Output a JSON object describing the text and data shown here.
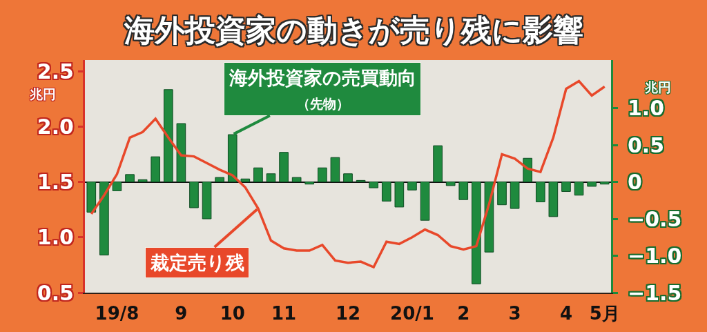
{
  "chart_data": {
    "type": "bar",
    "title": "海外投資家の動きが売り残に影響",
    "ylabel": "兆円",
    "y2label": "兆円",
    "categories": [
      null,
      null,
      "19/8",
      null,
      null,
      null,
      null,
      "9",
      null,
      null,
      null,
      "10",
      null,
      null,
      null,
      "11",
      null,
      null,
      null,
      null,
      "12",
      null,
      null,
      null,
      null,
      "20/1",
      null,
      null,
      null,
      "2",
      null,
      null,
      null,
      "3",
      null,
      null,
      null,
      "4",
      null,
      null,
      "5月"
    ],
    "series": [
      {
        "name": "海外投資家の売買動向（先物）",
        "axis": "y2",
        "color": "#1f8a3e",
        "values": [
          -0.41,
          -0.99,
          -0.12,
          0.1,
          0.03,
          0.34,
          1.25,
          0.79,
          -0.35,
          -0.5,
          0.06,
          0.64,
          0.04,
          0.19,
          0.11,
          0.4,
          0.06,
          -0.03,
          0.19,
          0.33,
          0.11,
          0.02,
          -0.08,
          -0.26,
          -0.34,
          -0.11,
          -0.52,
          0.49,
          -0.05,
          -0.24,
          -1.38,
          -0.95,
          -0.31,
          -0.36,
          0.32,
          -0.27,
          -0.47,
          -0.13,
          -0.18,
          -0.06,
          -0.03
        ]
      },
      {
        "name": "裁定売り残",
        "type": "line",
        "axis": "y",
        "color": "#e8482a",
        "values": [
          1.21,
          1.38,
          1.57,
          1.9,
          1.95,
          2.07,
          1.9,
          1.74,
          1.73,
          1.67,
          1.61,
          1.56,
          1.45,
          1.26,
          0.97,
          0.9,
          0.88,
          0.88,
          0.93,
          0.79,
          0.77,
          0.78,
          0.73,
          0.96,
          0.94,
          1.0,
          1.07,
          1.02,
          0.92,
          0.89,
          0.92,
          1.3,
          1.75,
          1.71,
          1.62,
          1.59,
          1.9,
          2.34,
          2.41,
          2.28,
          2.36
        ]
      }
    ],
    "ylim": [
      0.5,
      2.6
    ],
    "yticks": [
      0.5,
      {
        "value": 1,
        "label": "1.0"
      },
      1.5,
      {
        "value": 2,
        "label": "2.0"
      },
      2.5
    ],
    "y2lim": [
      -1.5,
      1.65
    ],
    "y2ticks": [
      {
        "value": -1.5,
        "label": "−1.5"
      },
      {
        "value": -1,
        "label": "−1.0"
      },
      {
        "value": -0.5,
        "label": "−0.5"
      },
      0,
      0.5,
      {
        "value": 1,
        "label": "1.0"
      }
    ]
  }
}
